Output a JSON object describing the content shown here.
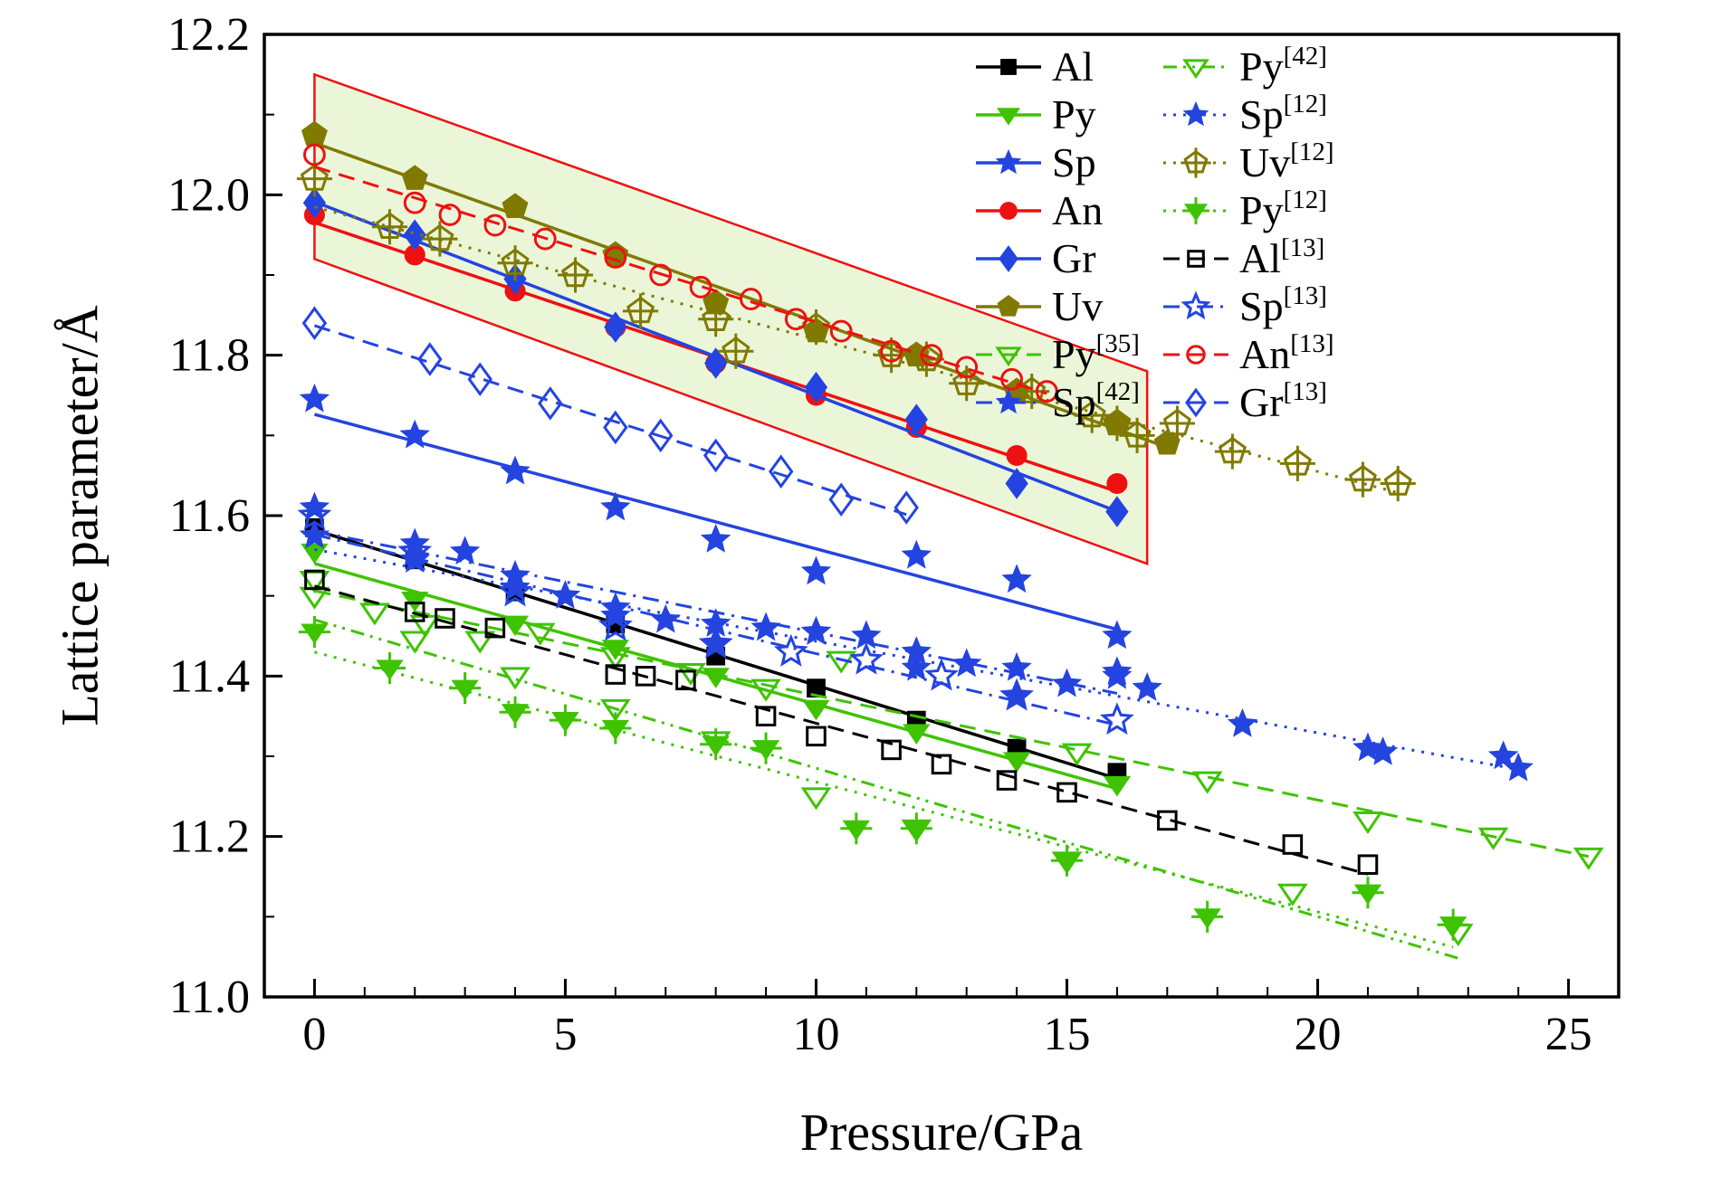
{
  "chart_data": {
    "type": "scatter",
    "title": "",
    "xlabel": "Pressure/GPa",
    "ylabel": "Lattice parameter/Å",
    "xlim": [
      -1,
      26
    ],
    "ylim": [
      11.0,
      12.2
    ],
    "x_ticks": [
      "0",
      "5",
      "10",
      "15",
      "20",
      "25"
    ],
    "x_tick_values": [
      0,
      5,
      10,
      15,
      20,
      25
    ],
    "y_ticks": [
      "11.0",
      "11.2",
      "11.4",
      "11.6",
      "11.8",
      "12.0",
      "12.2"
    ],
    "y_tick_values": [
      11.0,
      11.2,
      11.4,
      11.6,
      11.8,
      12.0,
      12.2
    ],
    "grid": false,
    "band": {
      "fill": "#e7f5d2",
      "outline": "#ee1111",
      "points": [
        [
          0,
          12.15
        ],
        [
          16.6,
          11.78
        ],
        [
          16.6,
          11.54
        ],
        [
          0,
          11.92
        ]
      ]
    },
    "legend": {
      "position": "top-right",
      "columns": [
        [
          "Al",
          "Py",
          "Sp",
          "An",
          "Gr",
          "Uv",
          "Py35",
          "Sp42"
        ],
        [
          "Py42",
          "Sp12",
          "Uv12",
          "Py12",
          "Al13",
          "Sp13",
          "An13",
          "Gr13"
        ]
      ]
    },
    "series": [
      {
        "id": "Al",
        "label": "Al",
        "sup": "",
        "color": "#000000",
        "marker": "square",
        "fill": "solid",
        "cross": false,
        "line": "solid",
        "x": [
          0,
          2,
          4,
          6,
          8,
          10,
          12,
          14,
          16
        ],
        "y": [
          11.585,
          11.545,
          11.505,
          11.465,
          11.425,
          11.385,
          11.345,
          11.31,
          11.28
        ]
      },
      {
        "id": "Py",
        "label": "Py",
        "sup": "",
        "color": "#3fc300",
        "marker": "triangle-down",
        "fill": "solid",
        "cross": false,
        "line": "solid",
        "x": [
          0,
          2,
          4,
          6,
          8,
          10,
          12,
          14,
          16
        ],
        "y": [
          11.555,
          11.495,
          11.465,
          11.435,
          11.4,
          11.36,
          11.33,
          11.295,
          11.265
        ]
      },
      {
        "id": "Sp",
        "label": "Sp",
        "sup": "",
        "color": "#2444e0",
        "marker": "star",
        "fill": "solid",
        "cross": false,
        "line": "solid",
        "x": [
          0,
          2,
          4,
          6,
          8,
          10,
          12,
          14,
          16
        ],
        "y": [
          11.745,
          11.7,
          11.655,
          11.61,
          11.57,
          11.53,
          11.55,
          11.52,
          11.45
        ]
      },
      {
        "id": "An",
        "label": "An",
        "sup": "",
        "color": "#ee1111",
        "marker": "circle",
        "fill": "solid",
        "cross": false,
        "line": "solid",
        "x": [
          0,
          2,
          4,
          6,
          8,
          10,
          12,
          14,
          16
        ],
        "y": [
          11.975,
          11.925,
          11.88,
          11.835,
          11.79,
          11.75,
          11.71,
          11.675,
          11.64
        ]
      },
      {
        "id": "Gr",
        "label": "Gr",
        "sup": "",
        "color": "#2444e0",
        "marker": "diamond",
        "fill": "solid",
        "cross": false,
        "line": "solid",
        "x": [
          0,
          2,
          4,
          6,
          8,
          10,
          12,
          14,
          16
        ],
        "y": [
          11.99,
          11.95,
          11.895,
          11.835,
          11.79,
          11.76,
          11.72,
          11.64,
          11.605
        ]
      },
      {
        "id": "Uv",
        "label": "Uv",
        "sup": "",
        "color": "#807a00",
        "marker": "pentagon",
        "fill": "solid",
        "cross": false,
        "line": "solid",
        "x": [
          0,
          2,
          4,
          6,
          8,
          10,
          12,
          14,
          16,
          17
        ],
        "y": [
          12.075,
          12.02,
          11.985,
          11.925,
          11.865,
          11.83,
          11.8,
          11.755,
          11.715,
          11.69
        ]
      },
      {
        "id": "Py35",
        "label": "Py",
        "sup": "[35]",
        "color": "#3fc300",
        "marker": "triangle-down",
        "fill": "open",
        "cross": false,
        "line": "dash",
        "x": [
          0,
          1.2,
          2.2,
          3.3,
          4.5,
          6,
          7.5,
          9,
          10.5,
          15.2,
          17.8,
          21,
          23.5,
          25.4
        ],
        "y": [
          11.52,
          11.48,
          11.465,
          11.445,
          11.455,
          11.425,
          11.405,
          11.385,
          11.42,
          11.305,
          11.27,
          11.22,
          11.2,
          11.175
        ]
      },
      {
        "id": "Sp42",
        "label": "Sp",
        "sup": "[42]",
        "color": "#2444e0",
        "marker": "star",
        "fill": "solid",
        "cross": false,
        "line": "dashdot",
        "x": [
          0,
          2,
          3,
          4,
          5,
          6,
          7,
          8,
          9,
          10,
          11,
          12,
          13,
          14,
          15,
          16
        ],
        "y": [
          11.61,
          11.565,
          11.555,
          11.525,
          11.5,
          11.485,
          11.47,
          11.465,
          11.46,
          11.455,
          11.45,
          11.43,
          11.415,
          11.41,
          11.39,
          11.4
        ]
      },
      {
        "id": "Py42",
        "label": "Py",
        "sup": "[42]",
        "color": "#3fc300",
        "marker": "triangle-down",
        "fill": "open",
        "cross": false,
        "line": "dashdotdot",
        "x": [
          0,
          2,
          4,
          6,
          8,
          10,
          12,
          15,
          19.5,
          22.8
        ],
        "y": [
          11.5,
          11.445,
          11.4,
          11.36,
          11.32,
          11.25,
          11.21,
          11.17,
          11.13,
          11.08
        ]
      },
      {
        "id": "Sp12",
        "label": "Sp",
        "sup": "[12]",
        "color": "#2444e0",
        "marker": "star",
        "fill": "solid",
        "cross": false,
        "line": "dot",
        "x": [
          0,
          2,
          4,
          6,
          8,
          10,
          12,
          14,
          16,
          16.6,
          18.5,
          21,
          21.3,
          23.7,
          24
        ],
        "y": [
          11.575,
          11.545,
          11.51,
          11.475,
          11.44,
          11.455,
          11.41,
          11.375,
          11.405,
          11.385,
          11.34,
          11.31,
          11.305,
          11.3,
          11.285
        ]
      },
      {
        "id": "Uv12",
        "label": "Uv",
        "sup": "[12]",
        "color": "#807a00",
        "marker": "pentagon",
        "fill": "open",
        "cross": true,
        "line": "dot",
        "x": [
          0,
          1.5,
          2.5,
          4,
          5.2,
          6.5,
          8,
          8.4,
          10,
          11.5,
          12.2,
          13,
          14.3,
          15.5,
          16,
          16.4,
          17.2,
          18.3,
          19.6,
          20.9,
          21.6
        ],
        "y": [
          12.02,
          11.96,
          11.945,
          11.915,
          11.9,
          11.855,
          11.845,
          11.805,
          11.835,
          11.8,
          11.795,
          11.765,
          11.755,
          11.725,
          11.715,
          11.7,
          11.715,
          11.68,
          11.665,
          11.645,
          11.64
        ]
      },
      {
        "id": "Py12",
        "label": "Py",
        "sup": "[12]",
        "color": "#3fc300",
        "marker": "triangle-down",
        "fill": "solid",
        "cross": true,
        "line": "dot",
        "x": [
          0,
          1.5,
          3,
          4,
          5,
          6,
          8,
          9,
          10.8,
          12,
          15,
          17.8,
          21,
          22.7
        ],
        "y": [
          11.455,
          11.41,
          11.385,
          11.355,
          11.345,
          11.335,
          11.315,
          11.31,
          11.21,
          11.21,
          11.17,
          11.1,
          11.13,
          11.09
        ]
      },
      {
        "id": "Al13",
        "label": "Al",
        "sup": "[13]",
        "color": "#000000",
        "marker": "square",
        "fill": "open",
        "cross": false,
        "line": "dash",
        "x": [
          0,
          2,
          2.6,
          3.6,
          6,
          6.6,
          7.4,
          9,
          10,
          11.5,
          12.5,
          13.8,
          15,
          17,
          19.5,
          21
        ],
        "y": [
          11.52,
          11.48,
          11.472,
          11.46,
          11.402,
          11.4,
          11.395,
          11.35,
          11.325,
          11.308,
          11.29,
          11.27,
          11.255,
          11.22,
          11.19,
          11.165
        ]
      },
      {
        "id": "Sp13",
        "label": "Sp",
        "sup": "[13]",
        "color": "#2444e0",
        "marker": "star",
        "fill": "open",
        "cross": false,
        "line": "dashdot",
        "x": [
          0,
          2,
          4,
          6,
          8,
          9.5,
          11,
          12.5,
          14,
          16
        ],
        "y": [
          11.6,
          11.555,
          11.505,
          11.462,
          11.44,
          11.43,
          11.42,
          11.4,
          11.375,
          11.345
        ]
      },
      {
        "id": "An13",
        "label": "An",
        "sup": "[13]",
        "color": "#ee1111",
        "marker": "circle",
        "fill": "open",
        "cross": false,
        "line": "dash",
        "x": [
          0,
          2,
          2.7,
          3.6,
          4.6,
          6,
          6.9,
          7.7,
          8.7,
          9.6,
          10.5,
          11.5,
          12.3,
          13,
          13.9,
          14.6
        ],
        "y": [
          12.05,
          11.99,
          11.975,
          11.962,
          11.945,
          11.922,
          11.9,
          11.885,
          11.87,
          11.845,
          11.83,
          11.805,
          11.8,
          11.785,
          11.77,
          11.755
        ]
      },
      {
        "id": "Gr13",
        "label": "Gr",
        "sup": "[13]",
        "color": "#2444e0",
        "marker": "diamond",
        "fill": "open",
        "cross": false,
        "line": "dash",
        "x": [
          0,
          2.3,
          3.3,
          4.7,
          6,
          6.9,
          8,
          9.3,
          10.5,
          11.8
        ],
        "y": [
          11.84,
          11.795,
          11.77,
          11.74,
          11.71,
          11.7,
          11.675,
          11.655,
          11.62,
          11.61
        ]
      }
    ]
  }
}
